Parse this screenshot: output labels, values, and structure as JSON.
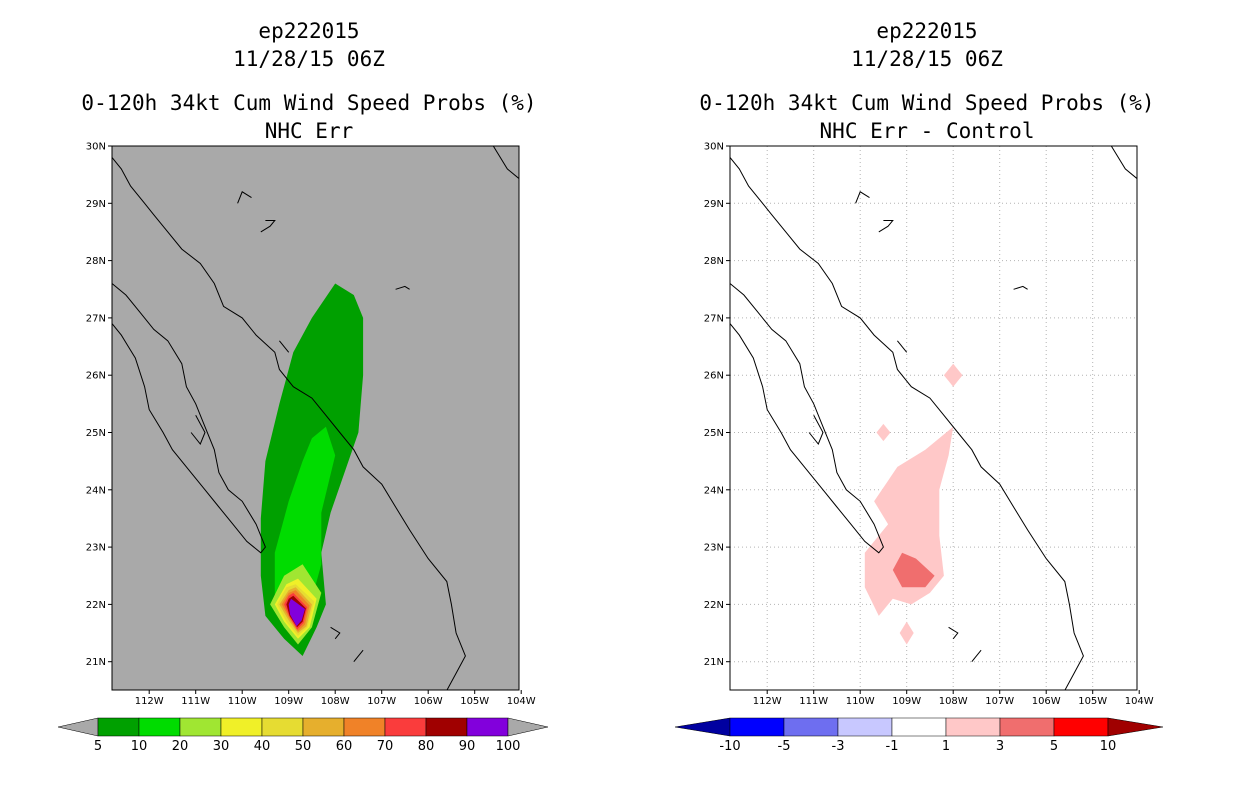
{
  "chart_data": [
    {
      "type": "filled-contour-map",
      "title_lines": [
        "ep222015",
        "11/28/15 06Z",
        "0-120h 34kt Cum Wind Speed Probs (%)",
        "NHC Err"
      ],
      "lon_ticks": [
        "112W",
        "111W",
        "110W",
        "109W",
        "108W",
        "107W",
        "106W",
        "105W",
        "104W"
      ],
      "lat_ticks": [
        "30N",
        "29N",
        "28N",
        "27N",
        "26N",
        "25N",
        "24N",
        "23N",
        "22N",
        "21N"
      ],
      "lon_range": [
        -112.8,
        -104.0
      ],
      "lat_range": [
        20.5,
        30.0
      ],
      "background_color": "#a9a9a9",
      "grid": false,
      "colorbar": {
        "labels": [
          "5",
          "10",
          "20",
          "30",
          "40",
          "50",
          "60",
          "70",
          "80",
          "90",
          "100"
        ],
        "colors": [
          "#00a000",
          "#00dc00",
          "#a0e632",
          "#f0f028",
          "#e6dc32",
          "#e6af2d",
          "#f08228",
          "#fa3c3c",
          "#a00000",
          "#8200dc"
        ],
        "end_color": "#a9a9a9"
      },
      "contours": [
        {
          "level": "5-10",
          "color": "#00a000",
          "points": [
            [
              -108.0,
              27.6
            ],
            [
              -107.6,
              27.4
            ],
            [
              -107.4,
              27.0
            ],
            [
              -107.4,
              26.0
            ],
            [
              -107.5,
              25.0
            ],
            [
              -107.8,
              24.3
            ],
            [
              -108.1,
              23.6
            ],
            [
              -108.3,
              22.9
            ],
            [
              -108.2,
              22.0
            ],
            [
              -108.4,
              21.6
            ],
            [
              -108.7,
              21.1
            ],
            [
              -109.1,
              21.4
            ],
            [
              -109.5,
              21.8
            ],
            [
              -109.6,
              22.5
            ],
            [
              -109.6,
              23.5
            ],
            [
              -109.5,
              24.5
            ],
            [
              -109.2,
              25.5
            ],
            [
              -108.9,
              26.4
            ],
            [
              -108.5,
              27.0
            ]
          ]
        },
        {
          "level": "10-20",
          "color": "#00dc00",
          "points": [
            [
              -108.2,
              25.1
            ],
            [
              -108.0,
              24.6
            ],
            [
              -108.3,
              23.6
            ],
            [
              -108.3,
              22.7
            ],
            [
              -108.5,
              22.1
            ],
            [
              -108.9,
              21.9
            ],
            [
              -109.3,
              22.1
            ],
            [
              -109.3,
              22.9
            ],
            [
              -109.0,
              23.8
            ],
            [
              -108.7,
              24.5
            ],
            [
              -108.5,
              24.9
            ]
          ]
        },
        {
          "level": "20-30",
          "color": "#a0e632",
          "points": [
            [
              -108.7,
              22.7
            ],
            [
              -108.3,
              22.2
            ],
            [
              -108.5,
              21.6
            ],
            [
              -108.8,
              21.3
            ],
            [
              -109.1,
              21.6
            ],
            [
              -109.4,
              22.0
            ],
            [
              -109.1,
              22.5
            ]
          ]
        },
        {
          "level": "30-40",
          "color": "#f0f028",
          "points": [
            [
              -108.8,
              22.45
            ],
            [
              -108.4,
              22.1
            ],
            [
              -108.55,
              21.6
            ],
            [
              -108.8,
              21.4
            ],
            [
              -109.1,
              21.7
            ],
            [
              -109.3,
              22.0
            ],
            [
              -109.05,
              22.35
            ]
          ]
        },
        {
          "level": "40-50",
          "color": "#e6dc32",
          "points": [
            [
              -108.85,
              22.35
            ],
            [
              -108.45,
              22.05
            ],
            [
              -108.6,
              21.6
            ],
            [
              -108.8,
              21.45
            ],
            [
              -109.05,
              21.7
            ],
            [
              -109.25,
              22.0
            ],
            [
              -109.05,
              22.3
            ]
          ]
        },
        {
          "level": "50-60",
          "color": "#e6af2d",
          "points": [
            [
              -108.85,
              22.3
            ],
            [
              -108.5,
              22.0
            ],
            [
              -108.62,
              21.62
            ],
            [
              -108.8,
              21.5
            ],
            [
              -109.0,
              21.72
            ],
            [
              -109.2,
              22.0
            ],
            [
              -109.0,
              22.25
            ]
          ]
        },
        {
          "level": "60-70",
          "color": "#f08228",
          "points": [
            [
              -108.85,
              22.25
            ],
            [
              -108.55,
              21.98
            ],
            [
              -108.65,
              21.65
            ],
            [
              -108.8,
              21.53
            ],
            [
              -108.98,
              21.75
            ],
            [
              -109.15,
              22.0
            ],
            [
              -109.0,
              22.2
            ]
          ]
        },
        {
          "level": "70-80",
          "color": "#fa3c3c",
          "points": [
            [
              -108.9,
              22.2
            ],
            [
              -108.6,
              21.95
            ],
            [
              -108.68,
              21.68
            ],
            [
              -108.82,
              21.56
            ],
            [
              -108.98,
              21.78
            ],
            [
              -109.1,
              22.0
            ],
            [
              -109.0,
              22.15
            ]
          ]
        },
        {
          "level": "80-90",
          "color": "#a00000",
          "points": [
            [
              -108.9,
              22.15
            ],
            [
              -108.63,
              21.93
            ],
            [
              -108.7,
              21.7
            ],
            [
              -108.82,
              21.6
            ],
            [
              -108.98,
              21.8
            ],
            [
              -109.05,
              22.0
            ],
            [
              -109.0,
              22.1
            ]
          ]
        },
        {
          "level": "90-100",
          "color": "#8200dc",
          "points": [
            [
              -108.95,
              22.1
            ],
            [
              -108.65,
              21.92
            ],
            [
              -108.72,
              21.72
            ],
            [
              -108.83,
              21.62
            ],
            [
              -108.97,
              21.82
            ],
            [
              -109.0,
              22.0
            ]
          ]
        }
      ]
    },
    {
      "type": "filled-contour-map",
      "title_lines": [
        "ep222015",
        "11/28/15 06Z",
        "0-120h 34kt Cum Wind Speed Probs (%)",
        "NHC Err - Control"
      ],
      "lon_ticks": [
        "112W",
        "111W",
        "110W",
        "109W",
        "108W",
        "107W",
        "106W",
        "105W",
        "104W"
      ],
      "lat_ticks": [
        "30N",
        "29N",
        "28N",
        "27N",
        "26N",
        "25N",
        "24N",
        "23N",
        "22N",
        "21N"
      ],
      "lon_range": [
        -112.8,
        -104.0
      ],
      "lat_range": [
        20.5,
        30.0
      ],
      "background_color": "#ffffff",
      "grid": true,
      "colorbar": {
        "labels": [
          "-10",
          "-5",
          "-3",
          "-1",
          "1",
          "3",
          "5",
          "10"
        ],
        "colors": [
          "#0000c8",
          "#0000ff",
          "#6e6ef0",
          "#c8c8ff",
          "#ffffff",
          "#ffc8c8",
          "#f06e6e",
          "#ff0000",
          "#a00000"
        ],
        "left_end_color": "#0000a0",
        "right_end_color": "#a00000"
      },
      "contours": [
        {
          "level": "1-3",
          "color": "#ffc8c8",
          "points": [
            [
              -108.0,
              25.1
            ],
            [
              -108.1,
              24.6
            ],
            [
              -108.3,
              24.0
            ],
            [
              -108.3,
              23.2
            ],
            [
              -108.2,
              22.5
            ],
            [
              -108.5,
              22.2
            ],
            [
              -108.9,
              22.0
            ],
            [
              -109.3,
              22.1
            ],
            [
              -109.6,
              21.8
            ],
            [
              -109.9,
              22.3
            ],
            [
              -109.9,
              22.9
            ],
            [
              -109.4,
              23.4
            ],
            [
              -109.7,
              23.8
            ],
            [
              -109.2,
              24.4
            ],
            [
              -108.6,
              24.7
            ]
          ]
        },
        {
          "level": "1-3",
          "color": "#ffc8c8",
          "points": [
            [
              -108.0,
              26.2
            ],
            [
              -107.8,
              26.0
            ],
            [
              -108.0,
              25.8
            ],
            [
              -108.2,
              26.0
            ]
          ]
        },
        {
          "level": "1-3",
          "color": "#ffc8c8",
          "points": [
            [
              -109.5,
              25.15
            ],
            [
              -109.35,
              25.0
            ],
            [
              -109.5,
              24.85
            ],
            [
              -109.65,
              25.0
            ]
          ]
        },
        {
          "level": "1-3",
          "color": "#ffc8c8",
          "points": [
            [
              -109.0,
              21.7
            ],
            [
              -108.85,
              21.5
            ],
            [
              -109.0,
              21.3
            ],
            [
              -109.15,
              21.5
            ]
          ]
        },
        {
          "level": "3-5",
          "color": "#f06e6e",
          "points": [
            [
              -108.8,
              22.8
            ],
            [
              -108.4,
              22.5
            ],
            [
              -108.6,
              22.3
            ],
            [
              -109.1,
              22.3
            ],
            [
              -109.3,
              22.6
            ],
            [
              -109.1,
              22.9
            ]
          ]
        }
      ]
    }
  ]
}
